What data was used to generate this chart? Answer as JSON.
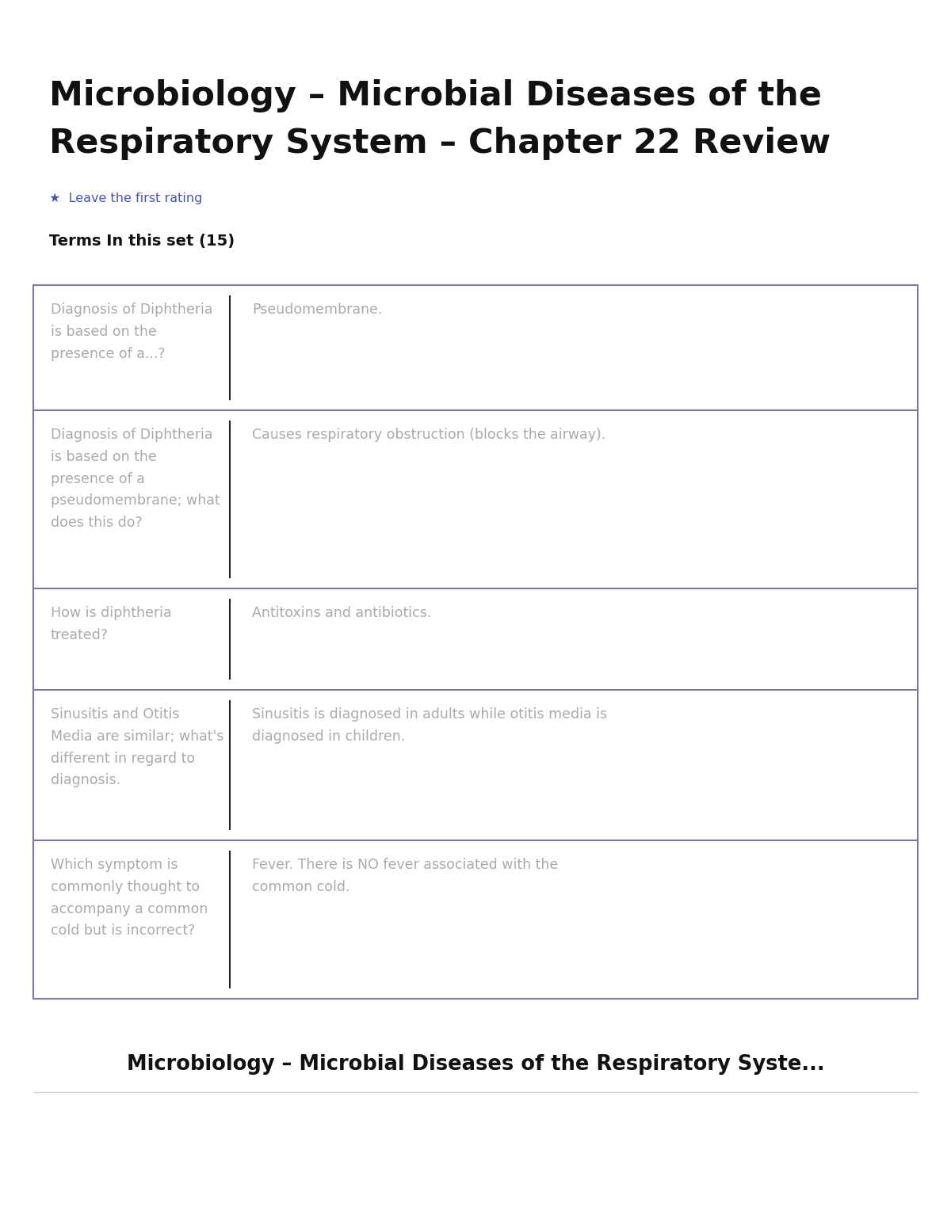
{
  "title_line1": "Microbiology – Microbial Diseases of the",
  "title_line2": "Respiratory System – Chapter 22 Review",
  "subtitle_star": "★  Leave the first rating",
  "terms_label": "Terms In this set (15)",
  "footer_title": "Microbiology – Microbial Diseases of the Respiratory Syste...",
  "bg_color": "#ffffff",
  "card_bg": "#ffffff",
  "card_border_color": "#7777aa",
  "divider_color": "#222222",
  "text_color_term": "#aaaaaa",
  "text_color_def": "#aaaaaa",
  "title_color": "#111111",
  "terms_label_color": "#111111",
  "star_color": "#4455aa",
  "footer_color": "#111111",
  "footer_line_color": "#ccccdd",
  "cards": [
    {
      "term": "Diagnosis of Diphtheria\nis based on the\npresence of a...?",
      "definition": "Pseudomembrane."
    },
    {
      "term": "Diagnosis of Diphtheria\nis based on the\npresence of a\npseudomembrane; what\ndoes this do?",
      "definition": "Causes respiratory obstruction (blocks the airway)."
    },
    {
      "term": "How is diphtheria\ntreated?",
      "definition": "Antitoxins and antibiotics."
    },
    {
      "term": "Sinusitis and Otitis\nMedia are similar; what's\ndifferent in regard to\ndiagnosis.",
      "definition": "Sinusitis is diagnosed in adults while otitis media is\ndiagnosed in children."
    },
    {
      "term": "Which symptom is\ncommonly thought to\naccompany a common\ncold but is incorrect?",
      "definition": "Fever. There is NO fever associated with the\ncommon cold."
    }
  ],
  "fig_width": 12.0,
  "fig_height": 15.53,
  "dpi": 100
}
